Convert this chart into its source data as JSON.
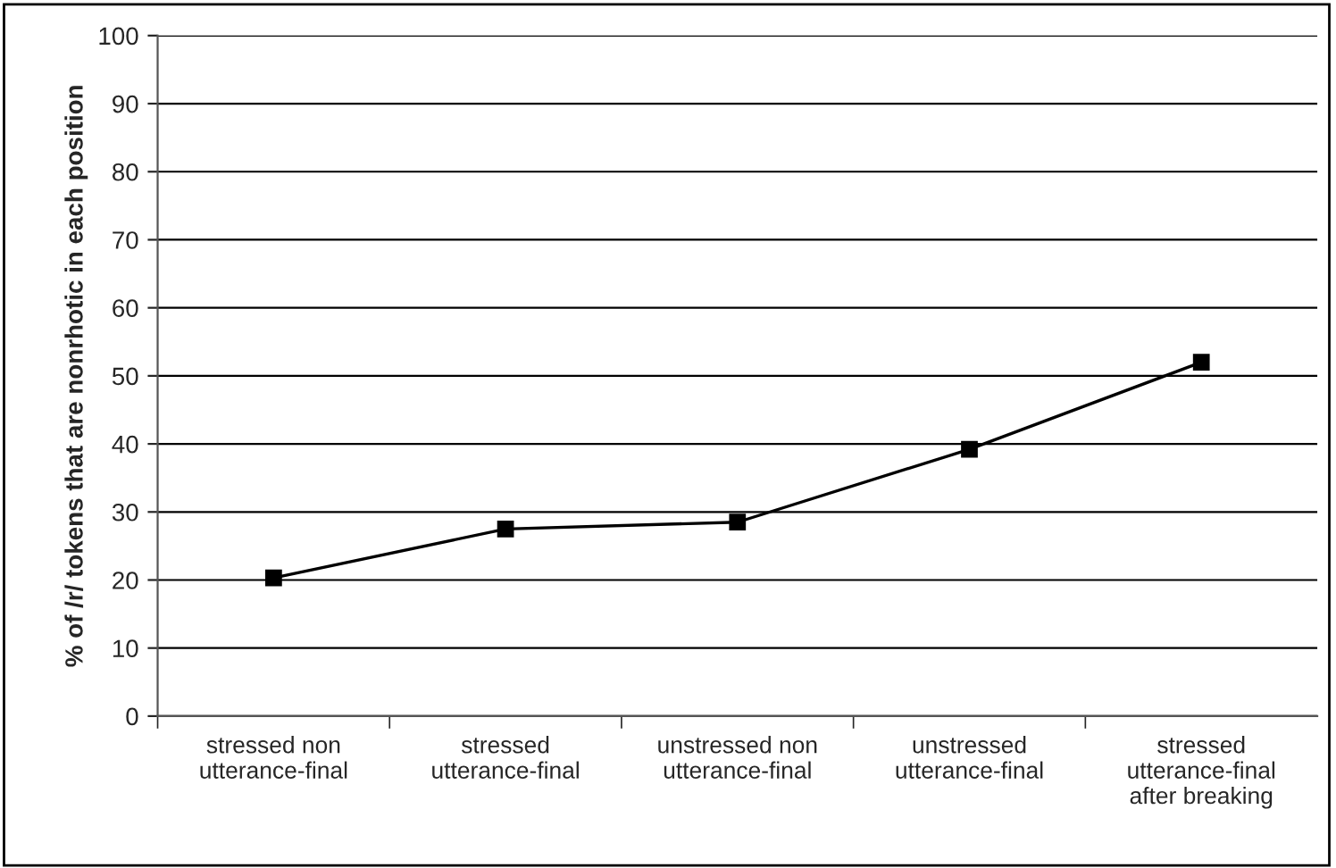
{
  "chart_data": {
    "type": "line",
    "ylabel": "% of /r/ tokens that are nonrhotic in each position",
    "categories": [
      "stressed non\nutterance-final",
      "stressed\nutterance-final",
      "unstressed non\nutterance-final",
      "unstressed\nutterance-final",
      "stressed\nutterance-final\nafter breaking"
    ],
    "series": [
      {
        "color": "#000000",
        "values": [
          20.3,
          27.5,
          28.5,
          39.2,
          52
        ]
      }
    ],
    "ylim": [
      0,
      100
    ],
    "yticks": [
      0,
      10,
      20,
      30,
      40,
      50,
      60,
      70,
      80,
      90,
      100
    ],
    "grid": "y",
    "marker": "square",
    "line_style": "solid",
    "legend": false
  }
}
